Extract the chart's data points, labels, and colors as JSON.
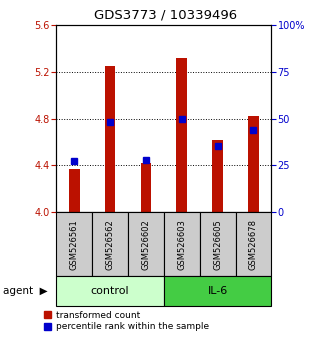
{
  "title": "GDS3773 / 10339496",
  "samples": [
    "GSM526561",
    "GSM526562",
    "GSM526602",
    "GSM526603",
    "GSM526605",
    "GSM526678"
  ],
  "red_values": [
    4.37,
    5.25,
    4.42,
    5.32,
    4.62,
    4.82
  ],
  "blue_values": [
    4.44,
    4.77,
    4.45,
    4.8,
    4.57,
    4.7
  ],
  "ylim_left": [
    4.0,
    5.6
  ],
  "ylim_right": [
    0,
    100
  ],
  "yticks_left": [
    4.0,
    4.4,
    4.8,
    5.2,
    5.6
  ],
  "yticks_right": [
    0,
    25,
    50,
    75,
    100
  ],
  "ytick_labels_right": [
    "0",
    "25",
    "50",
    "75",
    "100%"
  ],
  "grid_lines": [
    4.4,
    4.8,
    5.2
  ],
  "left_color": "#bb1100",
  "right_color": "#0000cc",
  "bar_width": 0.3,
  "marker_size": 5,
  "control_color": "#ccffcc",
  "il6_color": "#44cc44",
  "sample_bg_color": "#cccccc",
  "legend_red": "transformed count",
  "legend_blue": "percentile rank within the sample",
  "control_samples": [
    0,
    1,
    2
  ],
  "il6_samples": [
    3,
    4,
    5
  ]
}
